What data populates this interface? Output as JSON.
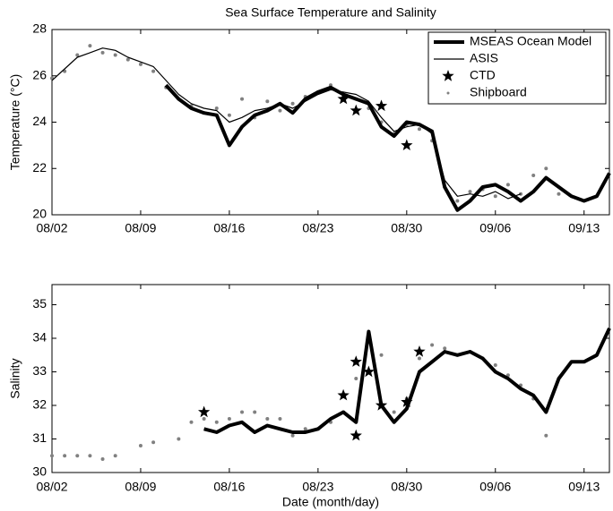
{
  "chart_data": [
    {
      "type": "line",
      "title": "Sea Surface Temperature and Salinity",
      "ylabel": "Temperature (°C)",
      "x": [
        "08/02",
        "08/03",
        "08/04",
        "08/05",
        "08/06",
        "08/07",
        "08/08",
        "08/09",
        "08/10",
        "08/11",
        "08/12",
        "08/13",
        "08/14",
        "08/15",
        "08/16",
        "08/17",
        "08/18",
        "08/19",
        "08/20",
        "08/21",
        "08/22",
        "08/23",
        "08/24",
        "08/25",
        "08/26",
        "08/27",
        "08/28",
        "08/29",
        "08/30",
        "08/31",
        "09/01",
        "09/02",
        "09/03",
        "09/04",
        "09/05",
        "09/06",
        "09/07",
        "09/08",
        "09/09",
        "09/10",
        "09/11",
        "09/12",
        "09/13",
        "09/14",
        "09/15"
      ],
      "xlim": [
        "08/02",
        "09/15"
      ],
      "xticks": [
        "08/02",
        "08/09",
        "08/16",
        "08/23",
        "08/30",
        "09/06",
        "09/13"
      ],
      "ylim": [
        20,
        28
      ],
      "yticks": [
        20,
        22,
        24,
        26,
        28
      ],
      "legend": "upper right",
      "series": [
        {
          "name": "MSEAS Ocean Model",
          "color": "#000000",
          "linewidth": 4,
          "values": [
            null,
            null,
            null,
            null,
            null,
            null,
            null,
            null,
            null,
            25.6,
            25.0,
            24.6,
            24.4,
            24.3,
            23.0,
            23.8,
            24.3,
            24.5,
            24.8,
            24.4,
            25.0,
            25.3,
            25.5,
            25.2,
            25.0,
            24.8,
            23.8,
            23.4,
            24.0,
            23.9,
            23.6,
            21.2,
            20.2,
            20.6,
            21.2,
            21.3,
            21.0,
            20.6,
            21.0,
            21.6,
            21.2,
            20.8,
            20.6,
            20.8,
            21.8
          ]
        },
        {
          "name": "ASIS",
          "color": "#000000",
          "linewidth": 1.2,
          "values": [
            25.8,
            26.3,
            26.8,
            27.0,
            27.2,
            27.1,
            26.8,
            26.6,
            26.4,
            25.8,
            25.2,
            24.8,
            24.6,
            24.5,
            24.0,
            24.2,
            24.5,
            24.6,
            24.8,
            24.6,
            24.9,
            25.2,
            25.4,
            25.3,
            25.2,
            24.9,
            24.2,
            23.6,
            23.8,
            23.9,
            23.5,
            21.5,
            20.8,
            20.9,
            20.8,
            21.0,
            20.7,
            20.9,
            null,
            null,
            null,
            null,
            null,
            null,
            null
          ]
        },
        {
          "name": "CTD",
          "color": "#000000",
          "marker": "star",
          "x": [
            "08/25",
            "08/26",
            "08/28",
            "08/30"
          ],
          "values": [
            25.0,
            24.5,
            24.7,
            23.0
          ]
        },
        {
          "name": "Shipboard",
          "color": "#808080",
          "marker": "dot",
          "values": [
            25.9,
            26.2,
            26.9,
            27.3,
            27.0,
            26.9,
            26.7,
            26.5,
            26.2,
            25.5,
            25.0,
            24.7,
            24.4,
            24.6,
            24.3,
            25.0,
            24.2,
            24.9,
            24.5,
            24.8,
            25.1,
            25.3,
            25.6,
            25.1,
            25.0,
            24.6,
            24.0,
            23.5,
            23.9,
            23.7,
            23.2,
            21.2,
            20.6,
            21.0,
            21.1,
            20.8,
            21.3,
            20.9,
            21.7,
            22.0,
            20.9,
            null,
            null,
            null,
            null
          ]
        }
      ]
    },
    {
      "type": "line",
      "ylabel": "Salinity",
      "xlabel": "Date (month/day)",
      "x": [
        "08/02",
        "08/03",
        "08/04",
        "08/05",
        "08/06",
        "08/07",
        "08/08",
        "08/09",
        "08/10",
        "08/11",
        "08/12",
        "08/13",
        "08/14",
        "08/15",
        "08/16",
        "08/17",
        "08/18",
        "08/19",
        "08/20",
        "08/21",
        "08/22",
        "08/23",
        "08/24",
        "08/25",
        "08/26",
        "08/27",
        "08/28",
        "08/29",
        "08/30",
        "08/31",
        "09/01",
        "09/02",
        "09/03",
        "09/04",
        "09/05",
        "09/06",
        "09/07",
        "09/08",
        "09/09",
        "09/10",
        "09/11",
        "09/12",
        "09/13",
        "09/14",
        "09/15"
      ],
      "xlim": [
        "08/02",
        "09/15"
      ],
      "xticks": [
        "08/02",
        "08/09",
        "08/16",
        "08/23",
        "08/30",
        "09/06",
        "09/13"
      ],
      "ylim": [
        30,
        35.6
      ],
      "yticks": [
        30,
        31,
        32,
        33,
        34,
        35
      ],
      "series": [
        {
          "color": "#000000",
          "linewidth": 4,
          "values": [
            null,
            null,
            null,
            null,
            null,
            null,
            null,
            null,
            null,
            null,
            null,
            null,
            31.3,
            31.2,
            31.4,
            31.5,
            31.2,
            31.4,
            31.3,
            31.2,
            31.2,
            31.3,
            31.6,
            31.8,
            31.5,
            34.2,
            32.0,
            31.5,
            31.9,
            33.0,
            33.3,
            33.6,
            33.5,
            33.6,
            33.4,
            33.0,
            32.8,
            32.5,
            32.3,
            31.8,
            32.8,
            33.3,
            33.3,
            33.5,
            34.3
          ]
        },
        {
          "color": "#000000",
          "marker": "star",
          "x": [
            "08/14",
            "08/25",
            "08/26",
            "08/26",
            "08/27",
            "08/28",
            "08/30",
            "08/31"
          ],
          "values": [
            31.8,
            32.3,
            31.1,
            33.3,
            33.0,
            32.0,
            32.1,
            33.6
          ]
        },
        {
          "color": "#808080",
          "marker": "dot",
          "values": [
            30.5,
            30.5,
            30.5,
            30.5,
            30.4,
            30.5,
            null,
            30.8,
            30.9,
            null,
            31.0,
            31.5,
            31.6,
            31.5,
            31.6,
            31.8,
            31.8,
            31.6,
            31.6,
            31.1,
            31.3,
            31.3,
            31.5,
            31.8,
            32.8,
            34.0,
            33.5,
            31.8,
            32.2,
            33.4,
            33.8,
            33.7,
            33.5,
            33.6,
            33.4,
            33.2,
            32.9,
            32.6,
            32.2,
            31.1,
            null,
            null,
            null,
            null,
            null
          ]
        }
      ]
    }
  ]
}
